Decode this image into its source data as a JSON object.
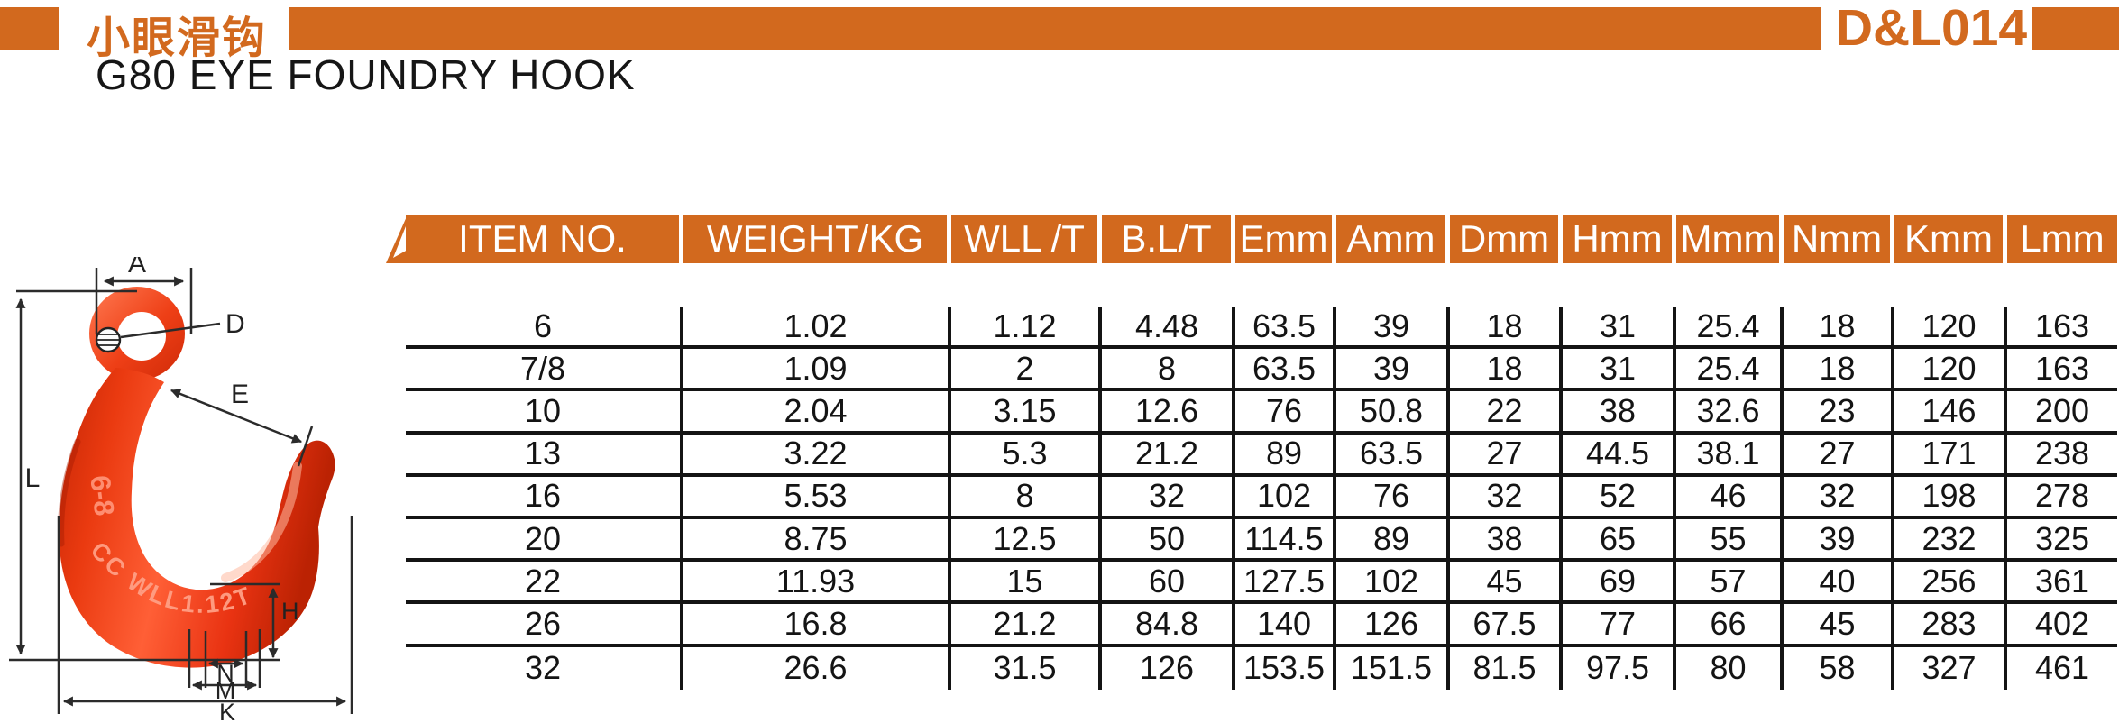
{
  "header": {
    "title_cn": "小眼滑钩",
    "title_en": "G80 EYE FOUNDRY HOOK",
    "code": "D&L014",
    "accent_color": "#D2691E"
  },
  "drawing": {
    "hook_color": "#E63714",
    "embossed": {
      "grade": "6-8",
      "wll": "CC WLL1.12T"
    },
    "dim_labels": {
      "A": "A",
      "D": "D",
      "E": "E",
      "L": "L",
      "H": "H",
      "N": "N",
      "M": "M",
      "K": "K"
    }
  },
  "table": {
    "columns": [
      "ITEM NO.",
      "WEIGHT/KG",
      "WLL /T",
      "B.L/T",
      "Emm",
      "Amm",
      "Dmm",
      "Hmm",
      "Mmm",
      "Nmm",
      "Kmm",
      "Lmm"
    ],
    "rows": [
      [
        "6",
        "1.02",
        "1.12",
        "4.48",
        "63.5",
        "39",
        "18",
        "31",
        "25.4",
        "18",
        "120",
        "163"
      ],
      [
        "7/8",
        "1.09",
        "2",
        "8",
        "63.5",
        "39",
        "18",
        "31",
        "25.4",
        "18",
        "120",
        "163"
      ],
      [
        "10",
        "2.04",
        "3.15",
        "12.6",
        "76",
        "50.8",
        "22",
        "38",
        "32.6",
        "23",
        "146",
        "200"
      ],
      [
        "13",
        "3.22",
        "5.3",
        "21.2",
        "89",
        "63.5",
        "27",
        "44.5",
        "38.1",
        "27",
        "171",
        "238"
      ],
      [
        "16",
        "5.53",
        "8",
        "32",
        "102",
        "76",
        "32",
        "52",
        "46",
        "32",
        "198",
        "278"
      ],
      [
        "20",
        "8.75",
        "12.5",
        "50",
        "114.5",
        "89",
        "38",
        "65",
        "55",
        "39",
        "232",
        "325"
      ],
      [
        "22",
        "11.93",
        "15",
        "60",
        "127.5",
        "102",
        "45",
        "69",
        "57",
        "40",
        "256",
        "361"
      ],
      [
        "26",
        "16.8",
        "21.2",
        "84.8",
        "140",
        "126",
        "67.5",
        "77",
        "66",
        "45",
        "283",
        "402"
      ],
      [
        "32",
        "26.6",
        "31.5",
        "126",
        "153.5",
        "151.5",
        "81.5",
        "97.5",
        "80",
        "58",
        "327",
        "461"
      ]
    ]
  }
}
